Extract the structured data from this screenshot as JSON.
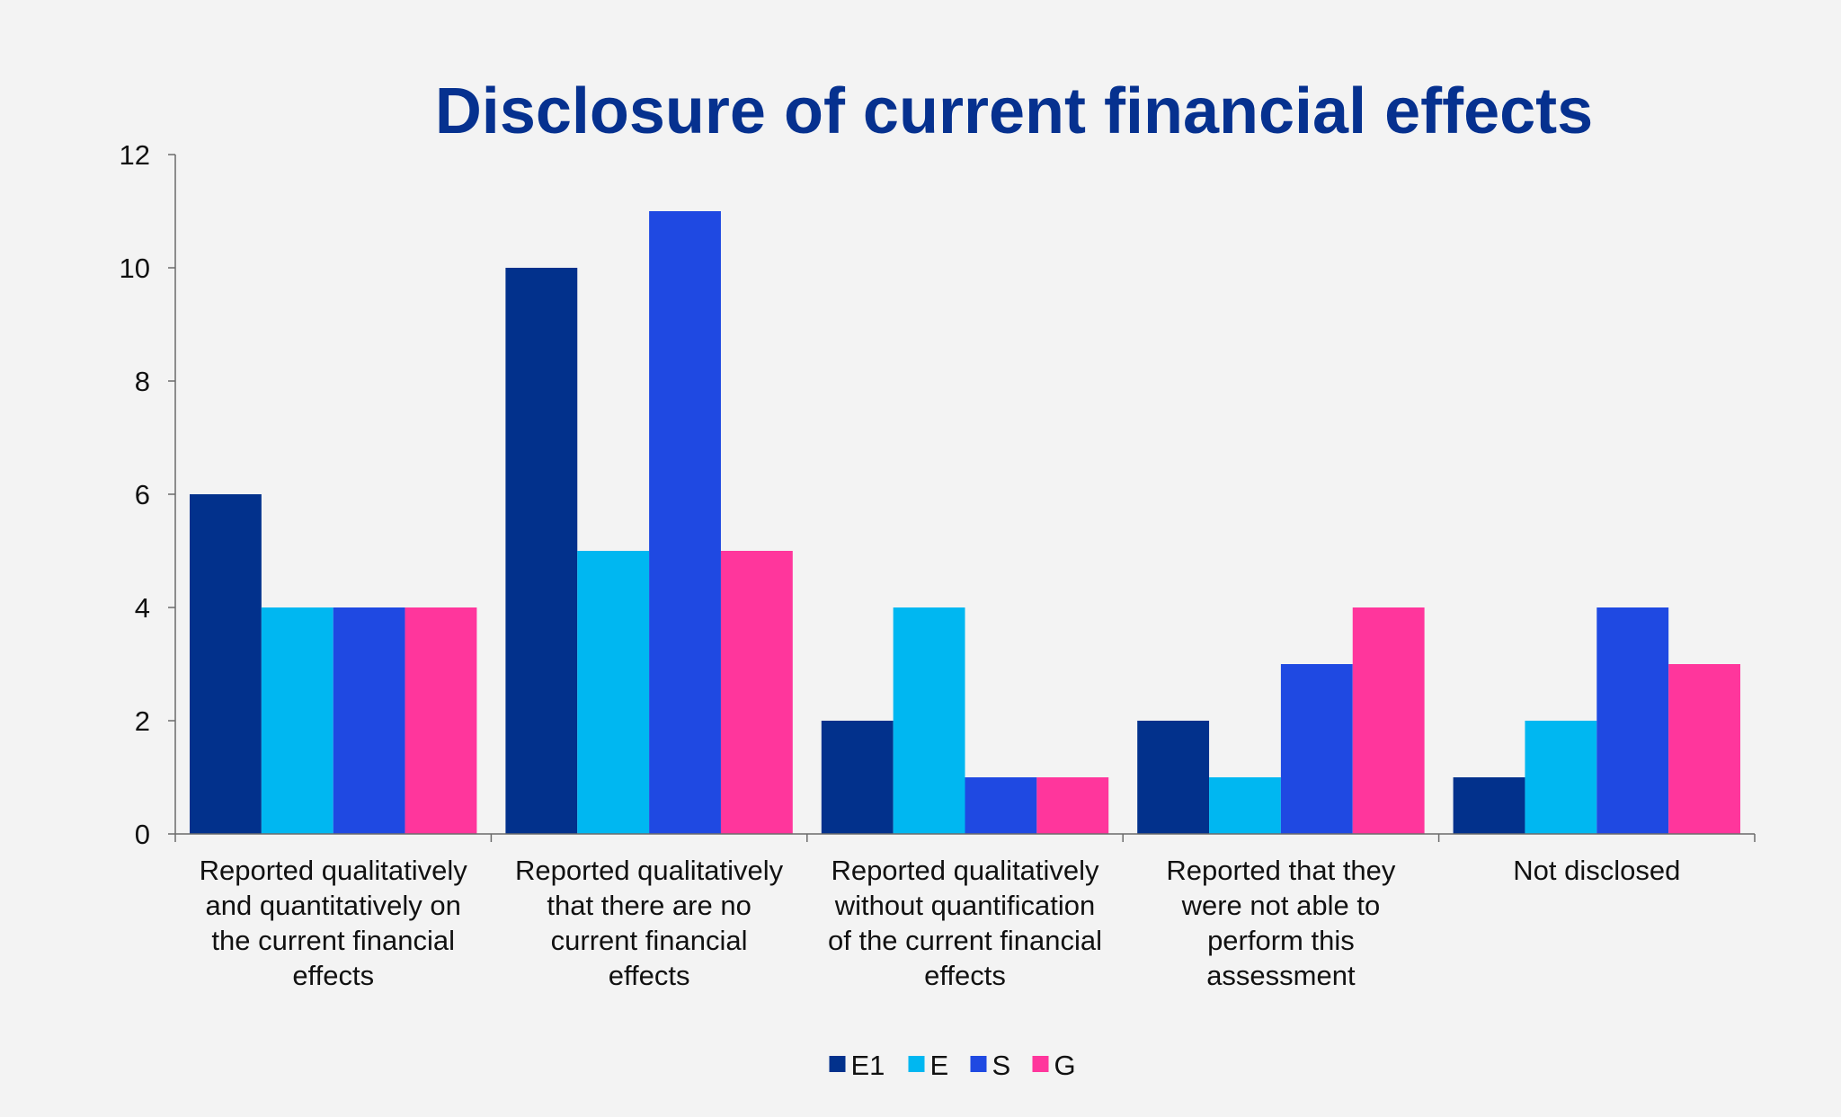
{
  "chart_data": {
    "type": "bar",
    "title": "Disclosure of current financial effects",
    "xlabel": "",
    "ylabel": "",
    "ylim": [
      0,
      12
    ],
    "yticks": [
      0,
      2,
      4,
      6,
      8,
      10,
      12
    ],
    "grid": false,
    "legend_position": "bottom-center",
    "categories": [
      [
        "Reported qualitatively",
        "and quantitatively on",
        "the current financial",
        "effects"
      ],
      [
        "Reported qualitatively",
        "that there are no",
        "current financial",
        "effects"
      ],
      [
        "Reported qualitatively",
        "without quantification",
        "of the current financial",
        "effects"
      ],
      [
        "Reported that they",
        "were not able to",
        "perform this",
        "assessment"
      ],
      [
        "Not disclosed"
      ]
    ],
    "series": [
      {
        "name": "E1",
        "color": "#02318c",
        "values": [
          6,
          10,
          2,
          2,
          1
        ]
      },
      {
        "name": "E",
        "color": "#00b7f1",
        "values": [
          4,
          5,
          4,
          1,
          2
        ]
      },
      {
        "name": "S",
        "color": "#1f49e2",
        "values": [
          4,
          11,
          1,
          3,
          4
        ]
      },
      {
        "name": "G",
        "color": "#ff369c",
        "values": [
          4,
          5,
          1,
          4,
          3
        ]
      }
    ]
  }
}
